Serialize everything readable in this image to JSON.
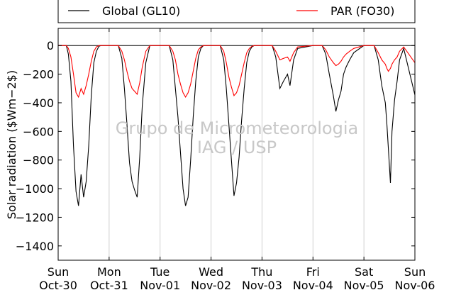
{
  "chart_data": {
    "type": "line",
    "title": "",
    "ylabel": "Solar radiation ($Wm−2$)",
    "xlabel": "",
    "ylim": [
      -1500,
      120
    ],
    "xlim": [
      0,
      7
    ],
    "yticks": [
      0,
      -200,
      -400,
      -600,
      -800,
      -1000,
      -1200,
      -1400
    ],
    "ytick_labels": [
      "0",
      "−200",
      "−400",
      "−600",
      "−800",
      "−1000",
      "−1200",
      "−1400"
    ],
    "xticks": [
      {
        "x": 0,
        "day": "Sun",
        "date": "Oct-30"
      },
      {
        "x": 1,
        "day": "Mon",
        "date": "Oct-31"
      },
      {
        "x": 2,
        "day": "Tue",
        "date": "Nov-01"
      },
      {
        "x": 3,
        "day": "Wed",
        "date": "Nov-02"
      },
      {
        "x": 4,
        "day": "Thu",
        "date": "Nov-03"
      },
      {
        "x": 5,
        "day": "Fri",
        "date": "Nov-04"
      },
      {
        "x": 6,
        "day": "Sat",
        "date": "Nov-05"
      },
      {
        "x": 7,
        "day": "Sun",
        "date": "Nov-06"
      }
    ],
    "grid": "vertical",
    "legend_placement": "top",
    "watermark": [
      "Grupo de Micrometeorologia",
      "IAG / USP"
    ],
    "series": [
      {
        "name": "Global (GL10)",
        "color": "#000000",
        "x": [
          0,
          0.16,
          0.2,
          0.25,
          0.3,
          0.35,
          0.4,
          0.45,
          0.5,
          0.55,
          0.6,
          0.65,
          0.7,
          0.75,
          0.8,
          0.84,
          0.87,
          1,
          1.18,
          1.25,
          1.3,
          1.35,
          1.4,
          1.45,
          1.5,
          1.55,
          1.6,
          1.65,
          1.72,
          1.8,
          2,
          2.18,
          2.25,
          2.3,
          2.35,
          2.4,
          2.45,
          2.5,
          2.55,
          2.6,
          2.65,
          2.7,
          2.75,
          2.8,
          2.85,
          3,
          3.18,
          3.25,
          3.3,
          3.35,
          3.4,
          3.45,
          3.5,
          3.55,
          3.6,
          3.65,
          3.7,
          3.75,
          3.8,
          3.85,
          4,
          4.2,
          4.27,
          4.35,
          4.42,
          4.5,
          4.55,
          4.62,
          4.7,
          5,
          5.18,
          5.25,
          5.32,
          5.4,
          5.45,
          5.5,
          5.55,
          5.6,
          5.65,
          5.72,
          5.8,
          6,
          6.2,
          6.28,
          6.35,
          6.42,
          6.45,
          6.48,
          6.52,
          6.55,
          6.6,
          6.65,
          6.7,
          6.78,
          7
        ],
        "values": [
          0,
          0,
          -60,
          -250,
          -700,
          -1020,
          -1120,
          -900,
          -1060,
          -950,
          -700,
          -350,
          -120,
          -40,
          -5,
          0,
          0,
          0,
          0,
          -90,
          -300,
          -550,
          -820,
          -950,
          -1010,
          -1060,
          -780,
          -420,
          -120,
          0,
          0,
          0,
          -100,
          -300,
          -500,
          -750,
          -1000,
          -1120,
          -1060,
          -800,
          -500,
          -250,
          -80,
          -20,
          0,
          0,
          0,
          -100,
          -300,
          -550,
          -800,
          -1050,
          -960,
          -780,
          -520,
          -300,
          -120,
          -40,
          -10,
          0,
          0,
          0,
          -80,
          -300,
          -250,
          -200,
          -280,
          -100,
          -20,
          0,
          0,
          -60,
          -200,
          -350,
          -460,
          -380,
          -320,
          -200,
          -150,
          -100,
          -50,
          0,
          0,
          -100,
          -280,
          -400,
          -550,
          -720,
          -960,
          -600,
          -380,
          -250,
          -100,
          -20,
          -345
        ]
      },
      {
        "name": "PAR (FO30)",
        "color": "#ff0000",
        "x": [
          0,
          0.16,
          0.2,
          0.25,
          0.3,
          0.35,
          0.4,
          0.45,
          0.5,
          0.55,
          0.6,
          0.65,
          0.7,
          0.75,
          0.8,
          0.84,
          0.87,
          1,
          1.18,
          1.25,
          1.3,
          1.35,
          1.4,
          1.45,
          1.5,
          1.55,
          1.6,
          1.65,
          1.72,
          1.8,
          2,
          2.18,
          2.25,
          2.3,
          2.35,
          2.4,
          2.45,
          2.5,
          2.55,
          2.6,
          2.65,
          2.7,
          2.75,
          2.8,
          2.85,
          3,
          3.18,
          3.25,
          3.3,
          3.35,
          3.4,
          3.45,
          3.5,
          3.55,
          3.6,
          3.65,
          3.7,
          3.75,
          3.8,
          3.85,
          4,
          4.2,
          4.27,
          4.35,
          4.42,
          4.5,
          4.55,
          4.62,
          4.7,
          5,
          5.18,
          5.25,
          5.32,
          5.4,
          5.45,
          5.5,
          5.55,
          5.6,
          5.65,
          5.72,
          5.8,
          6,
          6.2,
          6.28,
          6.35,
          6.42,
          6.45,
          6.48,
          6.52,
          6.55,
          6.6,
          6.65,
          6.7,
          6.78,
          7
        ],
        "values": [
          0,
          0,
          -20,
          -80,
          -200,
          -330,
          -360,
          -300,
          -340,
          -280,
          -200,
          -110,
          -40,
          -10,
          0,
          0,
          0,
          0,
          0,
          -40,
          -100,
          -180,
          -250,
          -300,
          -320,
          -340,
          -260,
          -150,
          -40,
          0,
          0,
          0,
          -40,
          -100,
          -200,
          -270,
          -330,
          -360,
          -330,
          -270,
          -180,
          -90,
          -30,
          -10,
          0,
          0,
          0,
          -40,
          -120,
          -220,
          -290,
          -350,
          -330,
          -280,
          -200,
          -120,
          -50,
          -20,
          -5,
          0,
          0,
          0,
          -40,
          -100,
          -90,
          -80,
          -110,
          -50,
          -10,
          0,
          0,
          -30,
          -80,
          -120,
          -140,
          -130,
          -110,
          -80,
          -60,
          -40,
          -20,
          0,
          0,
          -50,
          -100,
          -130,
          -160,
          -180,
          -160,
          -130,
          -100,
          -80,
          -40,
          -10,
          -120
        ]
      }
    ]
  }
}
